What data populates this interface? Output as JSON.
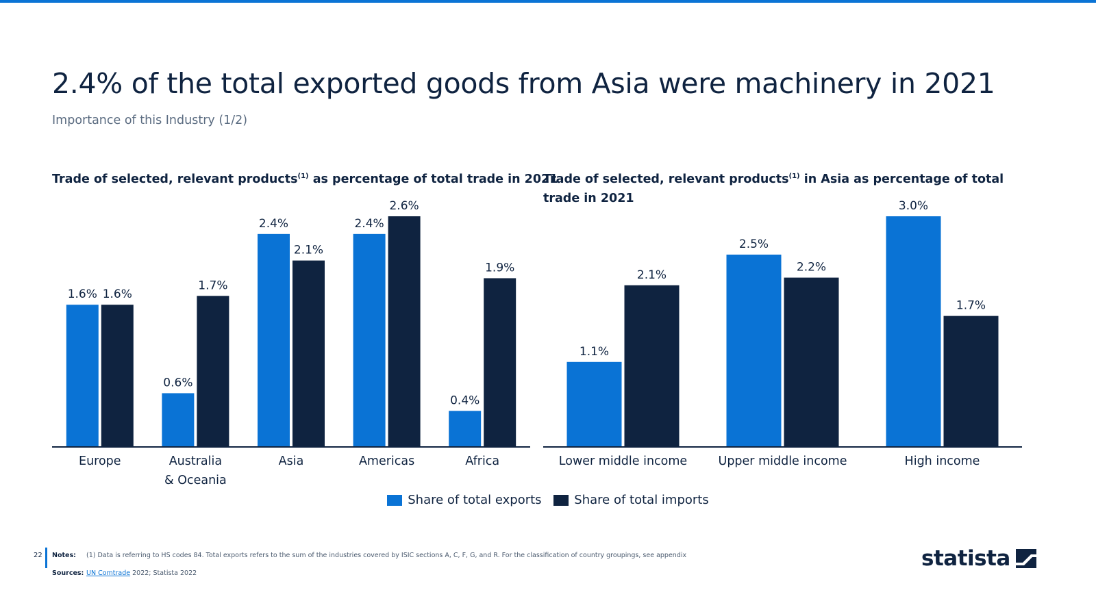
{
  "page": {
    "title": "2.4% of the total exported goods from Asia were machinery in 2021",
    "subtitle": "Importance of this Industry (1/2)",
    "page_number": "22"
  },
  "chart_titles": {
    "left_pre": "Trade of selected, relevant products",
    "left_sup": "(1)",
    "left_post": " as percentage of total trade in 2021",
    "right_pre": "Trade of selected, relevant products",
    "right_sup": "(1)",
    "right_post": " in Asia as percentage of total trade in 2021"
  },
  "colors": {
    "exports": "#0a73d5",
    "imports": "#0f2340",
    "accent": "#0a73d5"
  },
  "chart_data": [
    {
      "type": "bar",
      "title": "Trade of selected, relevant products(1) as percentage of total trade in 2021",
      "categories": [
        [
          "Europe"
        ],
        [
          "Australia",
          "& Oceania"
        ],
        [
          "Asia"
        ],
        [
          "Americas"
        ],
        [
          "Africa"
        ]
      ],
      "series": [
        {
          "name": "Share of total exports",
          "values": [
            1.6,
            0.6,
            2.4,
            2.4,
            0.4
          ],
          "labels": [
            "1.6%",
            "0.6%",
            "2.4%",
            "2.4%",
            "0.4%"
          ]
        },
        {
          "name": "Share of total imports",
          "values": [
            1.6,
            1.7,
            2.1,
            2.6,
            1.9
          ],
          "labels": [
            "1.6%",
            "1.7%",
            "2.1%",
            "2.6%",
            "1.9%"
          ]
        }
      ],
      "ylim": [
        0,
        2.6
      ],
      "xlabel": "",
      "ylabel": ""
    },
    {
      "type": "bar",
      "title": "Trade of selected, relevant products(1) in Asia as percentage of total trade in 2021",
      "categories": [
        [
          "Lower middle income"
        ],
        [
          "Upper middle income"
        ],
        [
          "High income"
        ]
      ],
      "series": [
        {
          "name": "Share of total exports",
          "values": [
            1.1,
            2.5,
            3.0
          ],
          "labels": [
            "1.1%",
            "2.5%",
            "3.0%"
          ]
        },
        {
          "name": "Share of total imports",
          "values": [
            2.1,
            2.2,
            1.7
          ],
          "labels": [
            "2.1%",
            "2.2%",
            "1.7%"
          ]
        }
      ],
      "ylim": [
        0,
        3.0
      ],
      "xlabel": "",
      "ylabel": ""
    }
  ],
  "legend": {
    "exports_label": "Share of total exports",
    "imports_label": "Share of total imports"
  },
  "footer": {
    "notes_label": "Notes:",
    "notes_text": "(1) Data is referring to HS codes 84. Total exports refers to the sum of the industries covered by ISIC sections A, C, F, G, and R. For the classification of country groupings, see appendix",
    "sources_label": "Sources:",
    "sources_link": "UN Comtrade",
    "sources_text": " 2022; Statista 2022"
  },
  "logo": {
    "text": "statista",
    "icon": "statista-logo-icon"
  }
}
